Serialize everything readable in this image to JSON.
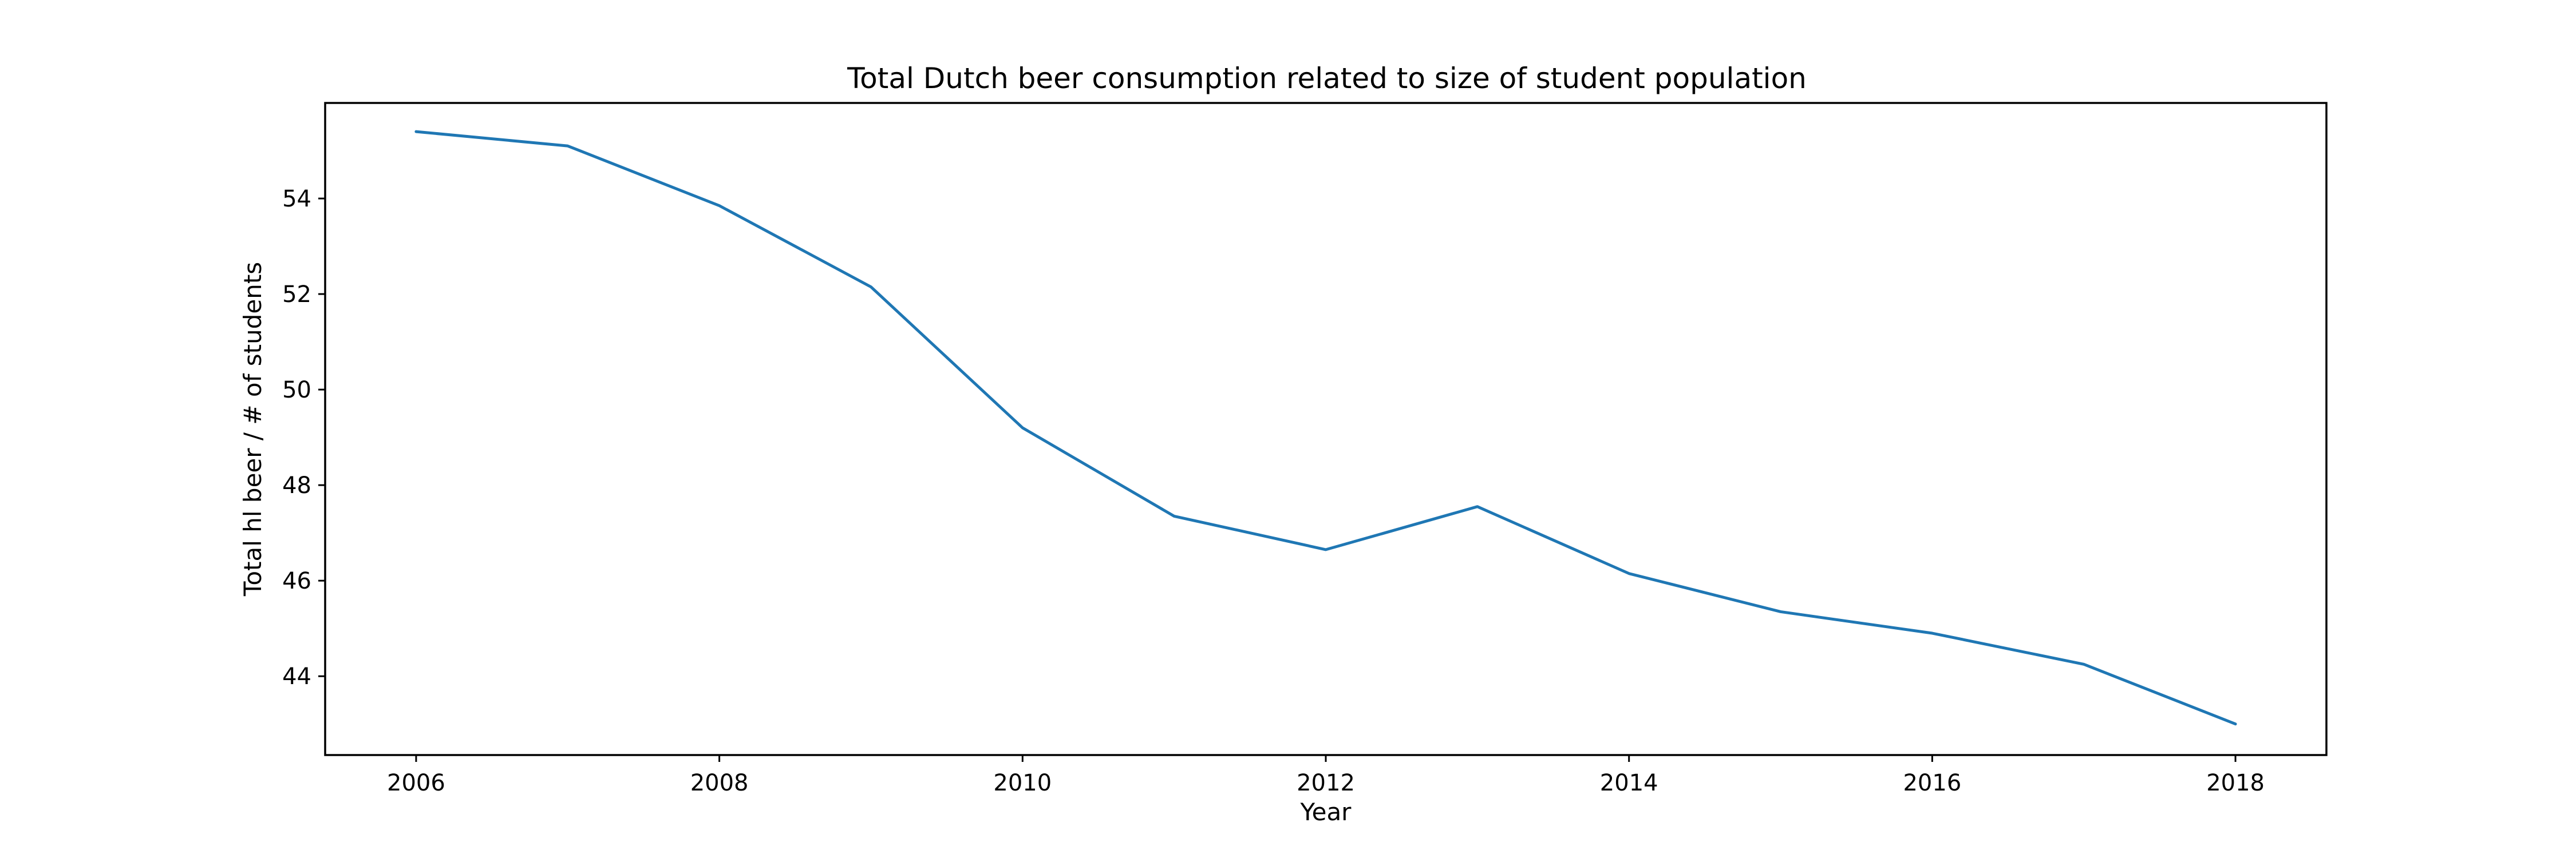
{
  "chart_data": {
    "type": "line",
    "title": "Total Dutch beer consumption related to size of student population",
    "xlabel": "Year",
    "ylabel": "Total hl beer / # of students",
    "x": [
      2006,
      2007,
      2008,
      2009,
      2010,
      2011,
      2012,
      2013,
      2014,
      2015,
      2016,
      2017,
      2018
    ],
    "series": [
      {
        "values": [
          55.4,
          55.1,
          53.85,
          52.15,
          49.2,
          47.35,
          46.65,
          47.55,
          46.15,
          45.35,
          44.9,
          44.25,
          43.0
        ],
        "color": "#1f77b4"
      }
    ],
    "xlim": [
      2005.4,
      2018.6
    ],
    "ylim": [
      42.35,
      56.0
    ],
    "x_ticks": [
      "2006",
      "2008",
      "2010",
      "2012",
      "2014",
      "2016",
      "2018"
    ],
    "y_ticks": [
      "44",
      "46",
      "48",
      "50",
      "52",
      "54"
    ],
    "grid": false,
    "legend": "none"
  }
}
